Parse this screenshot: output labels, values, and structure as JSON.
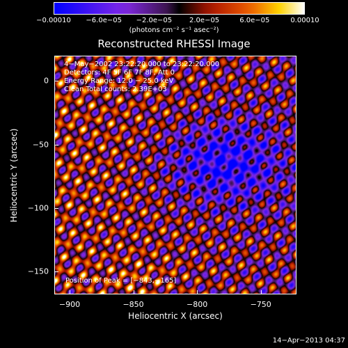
{
  "chart_data": {
    "type": "heatmap",
    "title": "Reconstructed RHESSI Image",
    "xlabel": "Heliocentric X (arcsec)",
    "ylabel": "Heliocentric Y (arcsec)",
    "xlim": [
      -912,
      -722
    ],
    "ylim": [
      -168,
      20
    ],
    "x_ticks": [
      -900,
      -850,
      -800,
      -750
    ],
    "x_tick_labels": [
      "−900",
      "−850",
      "−800",
      "−750"
    ],
    "y_ticks": [
      0,
      -50,
      -100,
      -150
    ],
    "y_tick_labels": [
      "0",
      "−50",
      "−100",
      "−150"
    ],
    "colorbar": {
      "range": [
        -0.0001,
        0.0001
      ],
      "tick_values": [
        -0.0001,
        -6e-05,
        -2e-05,
        2e-05,
        6e-05,
        0.0001
      ],
      "tick_labels": [
        "−0.00010",
        "−6.0e−05",
        "−2.0e−05",
        "2.0e−05",
        "6.0e−05",
        "0.00010"
      ],
      "unit": "(photons cm⁻² s⁻¹ asec⁻²)"
    },
    "annotations": [
      "4−May−2002 23:22:20.000 to 23:22:20.000",
      "Detectors: 4F 5F 6F 7F 8F, Att 0",
      "Energy Range: 12.0 − 25.0 keV",
      "Clean    Total counts: 2.39E+03"
    ],
    "peak_label": "Position of Peak = [−843,−165]",
    "peak": [
      -843,
      -165
    ],
    "grid": false
  },
  "footer": {
    "timestamp": "14−Apr−2013 04:37"
  }
}
